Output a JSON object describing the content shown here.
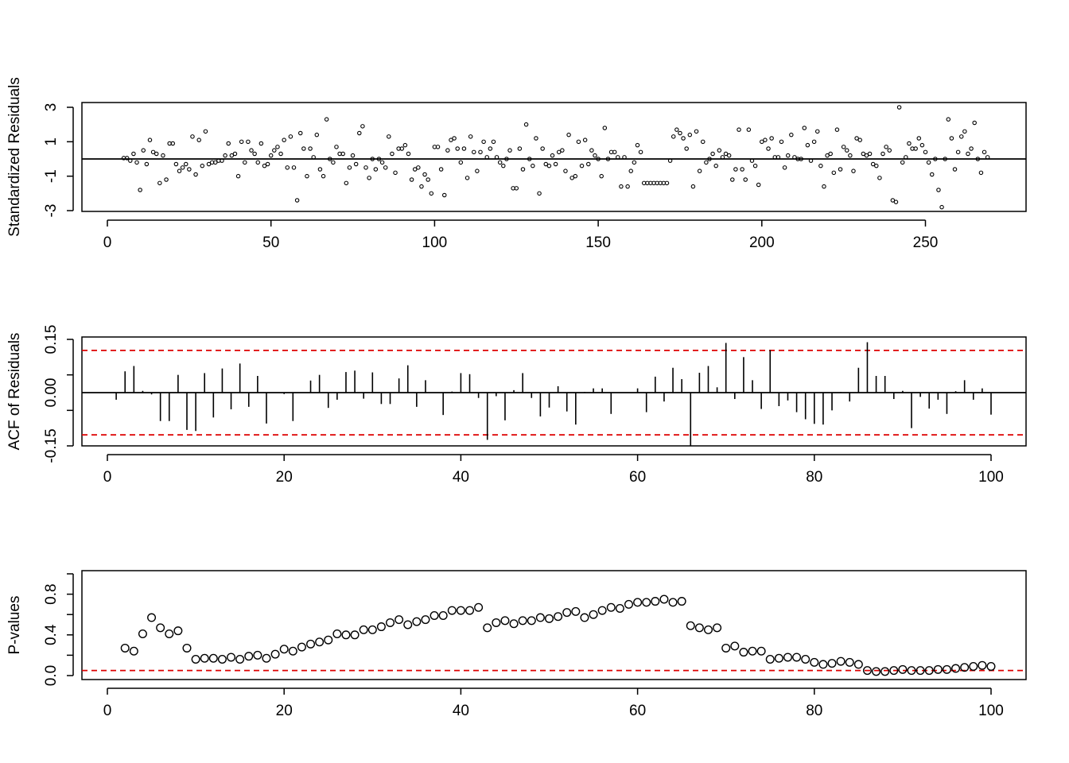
{
  "chart_data": [
    {
      "type": "scatter",
      "ylabel": "Standardized Residuals",
      "xlim": [
        0,
        280
      ],
      "ylim": [
        -3,
        3
      ],
      "x_ticks": [
        0,
        50,
        100,
        150,
        200,
        250
      ],
      "y_ticks": [
        -3,
        -1,
        1,
        3
      ],
      "x_tick_labels": [
        "0",
        "50",
        "100",
        "150",
        "200",
        "250"
      ],
      "y_tick_labels": [
        "-3",
        "-1",
        "1",
        "3"
      ],
      "reference_line": 0,
      "x_start": 5,
      "values": [
        0.05,
        0.05,
        -0.1,
        0.3,
        -0.2,
        -1.8,
        0.5,
        -0.3,
        1.1,
        0.4,
        0.3,
        -1.4,
        0.2,
        -1.2,
        0.9,
        0.9,
        -0.3,
        -0.7,
        -0.5,
        -0.3,
        -0.6,
        1.3,
        -0.9,
        1.1,
        -0.4,
        1.6,
        -0.3,
        -0.2,
        -0.2,
        -0.1,
        -0.1,
        0.2,
        0.9,
        0.2,
        0.3,
        -1.0,
        1.0,
        -0.2,
        1.0,
        0.5,
        0.3,
        -0.2,
        0.9,
        -0.4,
        -0.3,
        0.2,
        0.5,
        0.7,
        0.3,
        1.1,
        -0.5,
        1.3,
        -0.5,
        -2.4,
        1.5,
        0.6,
        -1.0,
        0.6,
        0.1,
        1.4,
        -0.6,
        -1.0,
        2.3,
        0.0,
        -0.2,
        0.7,
        0.3,
        0.3,
        -1.4,
        -0.5,
        0.2,
        -0.3,
        1.5,
        1.9,
        -0.5,
        -1.1,
        0.0,
        -0.6,
        0.0,
        -0.2,
        -0.5,
        1.3,
        0.3,
        -0.8,
        0.6,
        0.6,
        0.8,
        0.3,
        -1.2,
        -0.6,
        -0.5,
        -1.6,
        -0.9,
        -1.2,
        -2.0,
        0.7,
        0.7,
        -0.6,
        -2.1,
        0.5,
        1.1,
        1.2,
        0.6,
        -0.2,
        0.6,
        -1.1,
        1.3,
        0.4,
        -0.7,
        0.4,
        1.0,
        0.1,
        0.6,
        1.0,
        0.1,
        -0.2,
        -0.4,
        0.0,
        0.5,
        -1.7,
        -1.7,
        0.6,
        -0.6,
        2.0,
        0.0,
        -0.4,
        1.2,
        -2.0,
        0.6,
        -0.3,
        -0.4,
        0.2,
        -0.3,
        0.4,
        0.5,
        -0.7,
        1.4,
        -1.1,
        -1.0,
        1.0,
        -0.4,
        1.1,
        -0.3,
        0.5,
        0.2,
        0.0,
        -1.0,
        1.8,
        0.0,
        0.4,
        0.4,
        0.1,
        -1.6,
        0.1,
        -1.6,
        -0.7,
        -0.2,
        0.8,
        0.4,
        -1.4,
        -1.4,
        -1.4,
        -1.4,
        -1.4,
        -1.4,
        -1.4,
        -1.4,
        -0.1,
        1.3,
        1.7,
        1.5,
        1.2,
        0.6,
        1.4,
        -1.6,
        1.6,
        -0.7,
        1.0,
        -0.2,
        0.0,
        0.3,
        -0.4,
        0.5,
        0.1,
        0.3,
        0.2,
        -1.2,
        -0.6,
        1.7,
        -0.6,
        -1.2,
        1.7,
        -0.1,
        -0.4,
        -1.5,
        1.0,
        1.1,
        0.6,
        1.2,
        0.1,
        0.1,
        1.0,
        -0.5,
        0.2,
        1.4,
        0.1,
        0.0,
        0.0,
        1.8,
        0.8,
        -0.1,
        1.0,
        1.6,
        -0.4,
        -1.6,
        0.2,
        0.3,
        -0.8,
        1.7,
        -0.6,
        0.7,
        0.5,
        0.2,
        -0.7,
        1.2,
        1.1,
        0.3,
        0.2,
        0.3,
        -0.3,
        -0.4,
        -1.1,
        0.3,
        0.7,
        0.5,
        -2.4,
        -2.5,
        3.0,
        -0.2,
        0.1,
        0.9,
        0.6,
        0.6,
        1.2,
        0.8,
        0.4,
        -0.2,
        -0.9,
        0.0,
        -1.8,
        -2.8,
        0.0,
        2.3,
        1.2,
        -0.6,
        0.4,
        1.3,
        1.6,
        0.3,
        0.6,
        2.1,
        0.0,
        -0.8,
        0.4,
        0.1
      ]
    },
    {
      "type": "bar",
      "ylabel": "ACF of Residuals",
      "xlim": [
        0,
        104
      ],
      "ylim": [
        -0.16,
        0.15
      ],
      "x_ticks": [
        0,
        20,
        40,
        60,
        80,
        100
      ],
      "y_ticks": [
        -0.15,
        -0.05,
        0.05,
        0.15
      ],
      "x_tick_labels": [
        "0",
        "20",
        "40",
        "60",
        "80",
        "100"
      ],
      "y_tick_labels": [
        "-0.15",
        "0.00",
        "0.15"
      ],
      "y_tick_label_values": [
        -0.15,
        0.0,
        0.15
      ],
      "confidence_bound": 0.119,
      "lags": [
        1,
        2,
        3,
        4,
        5,
        6,
        7,
        8,
        9,
        10,
        11,
        12,
        13,
        14,
        15,
        16,
        17,
        18,
        19,
        20,
        21,
        22,
        23,
        24,
        25,
        26,
        27,
        28,
        29,
        30,
        31,
        32,
        33,
        34,
        35,
        36,
        37,
        38,
        39,
        40,
        41,
        42,
        43,
        44,
        45,
        46,
        47,
        48,
        49,
        50,
        51,
        52,
        53,
        54,
        55,
        56,
        57,
        58,
        59,
        60,
        61,
        62,
        63,
        64,
        65,
        66,
        67,
        68,
        69,
        70,
        71,
        72,
        73,
        74,
        75,
        76,
        77,
        78,
        79,
        80,
        81,
        82,
        83,
        84,
        85,
        86,
        87,
        88,
        89,
        90,
        91,
        92,
        93,
        94,
        95,
        96,
        97,
        98,
        99,
        100
      ],
      "values": [
        -0.02,
        0.06,
        0.075,
        0.005,
        -0.005,
        -0.08,
        -0.08,
        0.05,
        -0.105,
        -0.108,
        0.055,
        -0.07,
        0.068,
        -0.047,
        0.082,
        -0.04,
        0.047,
        -0.087,
        0.0,
        -0.004,
        -0.08,
        0.0,
        0.034,
        0.05,
        -0.043,
        -0.02,
        0.058,
        0.062,
        -0.017,
        0.057,
        -0.032,
        -0.032,
        0.04,
        0.077,
        -0.04,
        0.035,
        0.0,
        -0.063,
        0.003,
        0.055,
        0.052,
        -0.015,
        -0.133,
        -0.01,
        -0.078,
        0.007,
        0.055,
        -0.015,
        -0.067,
        -0.042,
        0.018,
        -0.053,
        -0.09,
        0.002,
        0.012,
        0.012,
        -0.06,
        0.0,
        0.0,
        0.012,
        -0.055,
        0.045,
        -0.025,
        0.07,
        0.038,
        -0.15,
        0.056,
        0.075,
        0.015,
        0.14,
        -0.018,
        0.1,
        0.035,
        -0.046,
        0.12,
        -0.038,
        -0.022,
        -0.055,
        -0.075,
        -0.088,
        -0.09,
        -0.05,
        0.002,
        -0.025,
        0.07,
        0.142,
        0.047,
        0.047,
        -0.018,
        0.005,
        -0.1,
        -0.012,
        -0.045,
        -0.02,
        -0.06,
        0.004,
        0.035,
        -0.02,
        0.012,
        -0.062
      ]
    },
    {
      "type": "scatter",
      "ylabel": "P-values",
      "xlim": [
        0,
        104
      ],
      "ylim": [
        0,
        1
      ],
      "x_ticks": [
        0,
        20,
        40,
        60,
        80,
        100
      ],
      "y_ticks": [
        0.0,
        0.2,
        0.4,
        0.6,
        0.8,
        1.0
      ],
      "x_tick_labels": [
        "0",
        "20",
        "40",
        "60",
        "80",
        "100"
      ],
      "y_tick_labels": [
        "0.0",
        "0.4",
        "0.8"
      ],
      "y_tick_label_values": [
        0.0,
        0.4,
        0.8
      ],
      "significance_line": 0.05,
      "x": [
        2,
        3,
        4,
        5,
        6,
        7,
        8,
        9,
        10,
        11,
        12,
        13,
        14,
        15,
        16,
        17,
        18,
        19,
        20,
        21,
        22,
        23,
        24,
        25,
        26,
        27,
        28,
        29,
        30,
        31,
        32,
        33,
        34,
        35,
        36,
        37,
        38,
        39,
        40,
        41,
        42,
        43,
        44,
        45,
        46,
        47,
        48,
        49,
        50,
        51,
        52,
        53,
        54,
        55,
        56,
        57,
        58,
        59,
        60,
        61,
        62,
        63,
        64,
        65,
        66,
        67,
        68,
        69,
        70,
        71,
        72,
        73,
        74,
        75,
        76,
        77,
        78,
        79,
        80,
        81,
        82,
        83,
        84,
        85,
        86,
        87,
        88,
        89,
        90,
        91,
        92,
        93,
        94,
        95,
        96,
        97,
        98,
        99,
        100
      ],
      "values": [
        0.27,
        0.24,
        0.41,
        0.57,
        0.47,
        0.41,
        0.44,
        0.27,
        0.16,
        0.17,
        0.17,
        0.16,
        0.18,
        0.16,
        0.19,
        0.2,
        0.17,
        0.21,
        0.26,
        0.24,
        0.28,
        0.31,
        0.33,
        0.35,
        0.41,
        0.4,
        0.4,
        0.45,
        0.45,
        0.48,
        0.52,
        0.55,
        0.5,
        0.53,
        0.55,
        0.59,
        0.59,
        0.64,
        0.64,
        0.64,
        0.67,
        0.47,
        0.52,
        0.54,
        0.51,
        0.54,
        0.54,
        0.57,
        0.56,
        0.58,
        0.62,
        0.63,
        0.57,
        0.6,
        0.64,
        0.67,
        0.66,
        0.7,
        0.72,
        0.72,
        0.73,
        0.75,
        0.72,
        0.73,
        0.49,
        0.47,
        0.45,
        0.47,
        0.27,
        0.29,
        0.23,
        0.24,
        0.24,
        0.16,
        0.17,
        0.18,
        0.18,
        0.16,
        0.13,
        0.11,
        0.12,
        0.14,
        0.13,
        0.11,
        0.05,
        0.04,
        0.04,
        0.05,
        0.06,
        0.05,
        0.05,
        0.05,
        0.06,
        0.06,
        0.07,
        0.08,
        0.09,
        0.1,
        0.09
      ]
    }
  ],
  "colors": {
    "ink": "#000000",
    "reference": "#DD0000"
  }
}
